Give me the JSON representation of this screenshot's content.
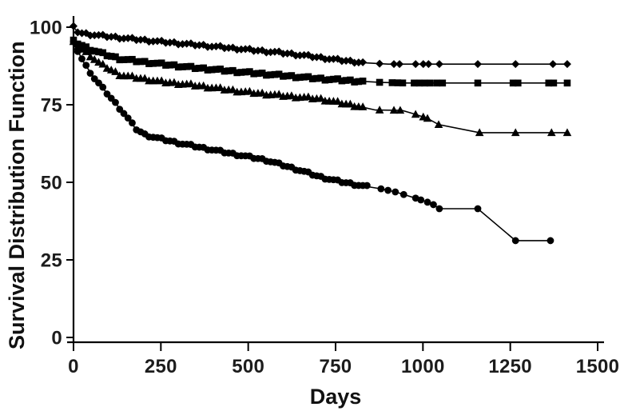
{
  "figure": {
    "background": "#ffffff",
    "axis_color": "#000000",
    "text_color": "#111111"
  },
  "chart_data": {
    "type": "line",
    "title": "",
    "xlabel": "Days",
    "ylabel": "Survival Distribution Function",
    "xlim": [
      0,
      1500
    ],
    "ylim": [
      0,
      100
    ],
    "x_ticks": [
      0,
      250,
      500,
      750,
      1000,
      1250,
      1500
    ],
    "y_ticks": [
      0,
      25,
      50,
      75,
      100
    ],
    "grid": false,
    "legend": "none",
    "series_color": "#000000",
    "series": [
      {
        "name": "diamond-series",
        "marker": "diamond",
        "points": [
          [
            0,
            100
          ],
          [
            15,
            98.2
          ],
          [
            60,
            97.5
          ],
          [
            133,
            96.6
          ],
          [
            250,
            95.3
          ],
          [
            361,
            94.2
          ],
          [
            476,
            93
          ],
          [
            590,
            91.8
          ],
          [
            659,
            90.9
          ],
          [
            760,
            89.4
          ],
          [
            835,
            88.5
          ],
          [
            900,
            88.1
          ],
          [
            1413,
            88.1
          ]
        ],
        "dense_markers": {
          "start": 0,
          "end": 835,
          "step": 12
        },
        "extra_markers": [
          876,
          917,
          933,
          979,
          1001,
          1016,
          1047,
          1157,
          1265,
          1372,
          1413
        ]
      },
      {
        "name": "square-series",
        "marker": "square",
        "points": [
          [
            0,
            95.5
          ],
          [
            40,
            93.2
          ],
          [
            90,
            91.2
          ],
          [
            133,
            89.8
          ],
          [
            200,
            88.8
          ],
          [
            338,
            87
          ],
          [
            476,
            85.6
          ],
          [
            590,
            84.5
          ],
          [
            704,
            83.4
          ],
          [
            800,
            82.7
          ],
          [
            880,
            82.2
          ],
          [
            950,
            82
          ],
          [
            1413,
            82
          ]
        ],
        "dense_markers": {
          "start": 0,
          "end": 835,
          "step": 12
        },
        "extra_markers": [
          876,
          912,
          928,
          942,
          975,
          990,
          1005,
          1020,
          1040,
          1056,
          1157,
          1258,
          1272,
          1360,
          1374,
          1413
        ]
      },
      {
        "name": "triangle-series",
        "marker": "triangle",
        "points": [
          [
            0,
            95
          ],
          [
            40,
            91.5
          ],
          [
            75,
            88.3
          ],
          [
            133,
            84.6
          ],
          [
            250,
            82.4
          ],
          [
            338,
            81.4
          ],
          [
            476,
            79.3
          ],
          [
            590,
            78
          ],
          [
            704,
            76.9
          ],
          [
            762,
            75.6
          ],
          [
            820,
            74.4
          ],
          [
            864,
            73.3
          ],
          [
            940,
            73.2
          ],
          [
            979,
            71.9
          ],
          [
            1013,
            70.6
          ],
          [
            1045,
            68.6
          ],
          [
            1162,
            66
          ],
          [
            1413,
            66
          ]
        ],
        "dense_markers": {
          "start": 0,
          "end": 835,
          "step": 12
        },
        "extra_markers": [
          876,
          917,
          935,
          979,
          1001,
          1013,
          1045,
          1162,
          1265,
          1368,
          1413
        ]
      },
      {
        "name": "circle-series",
        "marker": "circle",
        "points": [
          [
            0,
            95
          ],
          [
            30,
            88.5
          ],
          [
            60,
            83.5
          ],
          [
            90,
            79.5
          ],
          [
            120,
            75.5
          ],
          [
            150,
            71.5
          ],
          [
            178,
            67.3
          ],
          [
            205,
            65.3
          ],
          [
            250,
            64
          ],
          [
            300,
            62.7
          ],
          [
            361,
            61.3
          ],
          [
            450,
            59.3
          ],
          [
            550,
            57.2
          ],
          [
            650,
            53.8
          ],
          [
            704,
            51.8
          ],
          [
            760,
            50.3
          ],
          [
            835,
            48.7
          ],
          [
            880,
            47.9
          ],
          [
            921,
            46.9
          ],
          [
            979,
            44.9
          ],
          [
            1013,
            43.6
          ],
          [
            1030,
            42.8
          ],
          [
            1047,
            41.5
          ],
          [
            1157,
            41.5
          ],
          [
            1265,
            31.2
          ],
          [
            1365,
            31.2
          ]
        ],
        "dense_markers": {
          "start": 0,
          "end": 845,
          "step": 12
        },
        "extra_markers": [
          880,
          900,
          921,
          945,
          979,
          994,
          1013,
          1030,
          1047,
          1157,
          1265,
          1365
        ]
      }
    ]
  }
}
